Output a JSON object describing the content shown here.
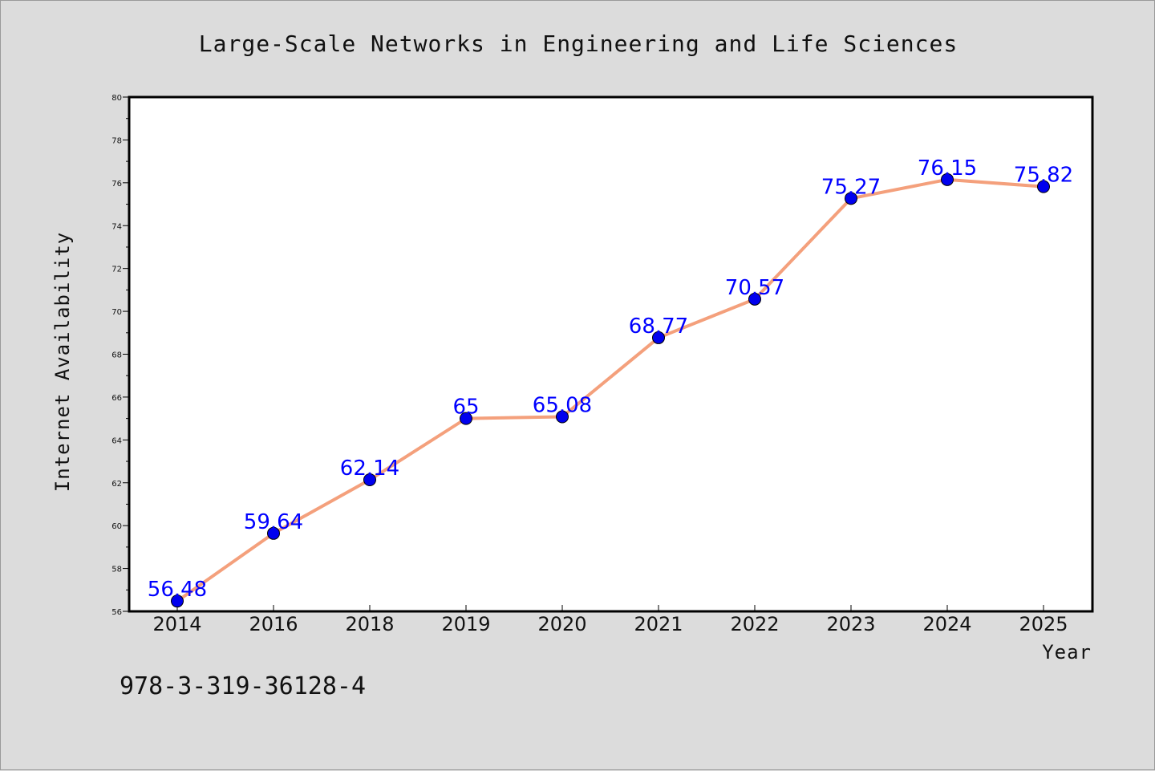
{
  "chart_data": {
    "type": "line",
    "title": "Large-Scale Networks in Engineering and Life Sciences",
    "xlabel": "Year",
    "ylabel": "Internet Availability",
    "categories": [
      "2014",
      "2016",
      "2018",
      "2019",
      "2020",
      "2021",
      "2022",
      "2023",
      "2024",
      "2025"
    ],
    "series": [
      {
        "values": [
          56.48,
          59.64,
          62.14,
          65,
          65.08,
          68.77,
          70.57,
          75.27,
          76.15,
          75.82
        ],
        "labels": [
          "56.48",
          "59.64",
          "62.14",
          "65",
          "65.08",
          "68.77",
          "70.57",
          "75.27",
          "76.15",
          "75.82"
        ],
        "line_color": "#f4a07c",
        "marker_color": "#0000ee"
      }
    ],
    "ylim": [
      56,
      80
    ],
    "yticks": [
      "56",
      "58",
      "60",
      "62",
      "64",
      "66",
      "68",
      "70",
      "72",
      "74",
      "76",
      "78",
      "80"
    ],
    "grid": false,
    "legend": "none"
  },
  "footer": {
    "isbn": "978-3-319-36128-4"
  }
}
